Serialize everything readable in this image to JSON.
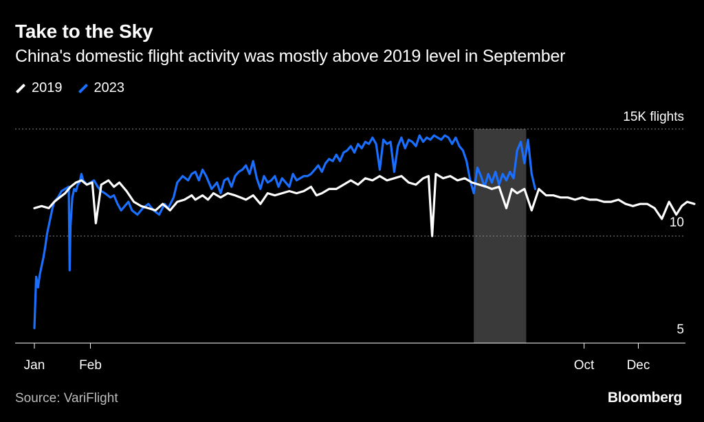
{
  "header": {
    "title": "Take to the Sky",
    "subtitle": "China's domestic flight activity was mostly above 2019 level in September"
  },
  "footer": {
    "source": "Source: VariFlight",
    "brand": "Bloomberg"
  },
  "colors": {
    "background": "#000000",
    "series_2019": "#ffffff",
    "series_2023": "#1a6fff",
    "highlight": "#3a3a3a",
    "grid": "#8a8a8a",
    "text": "#ffffff",
    "muted": "#bdbdbd"
  },
  "chart_data": {
    "type": "line",
    "title": "Take to the Sky",
    "subtitle": "China's domestic flight activity was mostly above 2019 level in September",
    "xlabel": "",
    "ylabel": "",
    "x_unit": "day of year",
    "xlim": [
      1,
      366
    ],
    "ylim": [
      5,
      15
    ],
    "y_ticks": [
      {
        "value": 15,
        "label": "15K flights"
      },
      {
        "value": 10,
        "label": "10"
      },
      {
        "value": 5,
        "label": "5"
      }
    ],
    "x_ticks": [
      {
        "value": 1,
        "label": "Jan"
      },
      {
        "value": 32,
        "label": "Feb"
      },
      {
        "value": 305,
        "label": "Oct"
      },
      {
        "value": 335,
        "label": "Dec"
      }
    ],
    "grid": "horizontal dotted",
    "legend": "top-left",
    "highlight_band": {
      "start": 244,
      "end": 273,
      "label": "September"
    },
    "series": [
      {
        "name": "2019",
        "x": [
          1,
          5,
          9,
          12,
          15,
          18,
          21,
          24,
          27,
          30,
          33,
          35,
          38,
          42,
          45,
          48,
          52,
          56,
          60,
          64,
          68,
          72,
          76,
          80,
          84,
          88,
          90,
          94,
          97,
          100,
          104,
          108,
          112,
          115,
          118,
          122,
          126,
          130,
          134,
          138,
          142,
          146,
          150,
          154,
          157,
          160,
          164,
          168,
          172,
          176,
          180,
          184,
          188,
          192,
          196,
          200,
          204,
          208,
          212,
          216,
          219,
          221,
          223,
          227,
          231,
          235,
          239,
          243,
          247,
          251,
          254,
          258,
          262,
          265,
          268,
          272,
          276,
          280,
          284,
          288,
          292,
          296,
          300,
          304,
          308,
          312,
          316,
          320,
          324,
          328,
          332,
          336,
          340,
          344,
          348,
          352,
          356,
          359,
          362,
          366
        ],
        "values": [
          11.3,
          11.4,
          11.3,
          11.6,
          11.8,
          12.0,
          12.3,
          12.5,
          12.6,
          12.4,
          12.5,
          10.6,
          12.4,
          12.6,
          12.3,
          12.5,
          12.1,
          11.6,
          11.4,
          11.3,
          11.2,
          11.5,
          11.2,
          11.6,
          11.7,
          11.9,
          11.7,
          11.9,
          11.7,
          12.0,
          11.8,
          12.0,
          11.9,
          11.8,
          11.7,
          11.9,
          11.5,
          12.0,
          11.9,
          12.0,
          12.1,
          12.0,
          12.1,
          12.3,
          11.9,
          12.0,
          12.2,
          12.2,
          12.4,
          12.6,
          12.4,
          12.7,
          12.6,
          12.8,
          12.6,
          12.7,
          12.8,
          12.5,
          12.4,
          12.7,
          12.8,
          10.0,
          12.9,
          12.7,
          12.8,
          12.6,
          12.7,
          12.5,
          12.4,
          12.3,
          12.2,
          12.3,
          11.3,
          12.2,
          12.0,
          12.2,
          11.2,
          12.2,
          11.9,
          11.9,
          11.8,
          11.8,
          11.7,
          11.8,
          11.7,
          11.7,
          11.6,
          11.6,
          11.7,
          11.5,
          11.4,
          11.5,
          11.5,
          11.3,
          10.8,
          11.6,
          11.0,
          11.4,
          11.6,
          11.5
        ]
      },
      {
        "name": "2023",
        "x": [
          1,
          2,
          3,
          4,
          5,
          6,
          7,
          8,
          9,
          10,
          11,
          12,
          14,
          16,
          18,
          20,
          20.5,
          21,
          22,
          23,
          24,
          25,
          26,
          27,
          28,
          30,
          32,
          34,
          36,
          38,
          40,
          43,
          45,
          47,
          49,
          51,
          53,
          55,
          58,
          61,
          64,
          67,
          70,
          73,
          75,
          78,
          80,
          83,
          86,
          88,
          90,
          92,
          94,
          96,
          99,
          102,
          104,
          106,
          108,
          110,
          112,
          114,
          116,
          118,
          120,
          122,
          124,
          126,
          128,
          130,
          132,
          134,
          136,
          138,
          140,
          142,
          144,
          146,
          148,
          150,
          152,
          154,
          156,
          158,
          160,
          162,
          164,
          166,
          168,
          170,
          172,
          174,
          176,
          178,
          180,
          182,
          184,
          186,
          188,
          190,
          192,
          194,
          196,
          198,
          200,
          202,
          204,
          206,
          208,
          210,
          212,
          214,
          216,
          218,
          220,
          222,
          224,
          226,
          228,
          230,
          232,
          234,
          236,
          238,
          240,
          242,
          244,
          246,
          248,
          250,
          252,
          254,
          256,
          258,
          260,
          262,
          264,
          266,
          268,
          270,
          272,
          274,
          276,
          278
        ],
        "values": [
          5.7,
          8.1,
          7.6,
          8.2,
          8.6,
          9.0,
          9.5,
          10.1,
          10.5,
          10.9,
          11.3,
          11.6,
          11.8,
          12.1,
          12.2,
          12.3,
          8.4,
          10.5,
          11.8,
          12.2,
          12.1,
          12.4,
          12.5,
          12.9,
          12.6,
          12.4,
          12.5,
          12.6,
          12.3,
          12.1,
          12.0,
          11.8,
          11.9,
          11.5,
          11.2,
          11.4,
          11.6,
          11.2,
          11.0,
          11.3,
          11.5,
          11.2,
          11.0,
          11.5,
          11.3,
          11.8,
          12.5,
          12.8,
          12.6,
          12.9,
          13.0,
          12.6,
          13.1,
          12.8,
          12.2,
          12.5,
          12.0,
          12.6,
          12.7,
          12.3,
          12.8,
          13.0,
          13.1,
          13.3,
          12.9,
          13.5,
          12.7,
          12.2,
          12.8,
          12.5,
          12.6,
          12.8,
          12.3,
          12.7,
          12.5,
          12.3,
          12.9,
          12.6,
          12.7,
          12.8,
          12.8,
          12.9,
          13.1,
          13.3,
          13.0,
          13.4,
          13.6,
          13.5,
          13.8,
          13.5,
          13.9,
          14.0,
          14.2,
          13.9,
          14.3,
          14.1,
          14.4,
          14.3,
          14.6,
          14.3,
          13.1,
          14.5,
          14.3,
          14.4,
          13.0,
          14.2,
          14.6,
          14.1,
          14.5,
          14.4,
          14.2,
          14.7,
          14.4,
          14.6,
          14.5,
          14.7,
          14.6,
          14.5,
          14.7,
          14.6,
          14.3,
          14.6,
          14.2,
          14.0,
          13.5,
          12.6,
          12.0,
          13.2,
          12.8,
          12.3,
          12.9,
          12.5,
          13.0,
          12.4,
          12.9,
          12.6,
          13.0,
          12.7,
          14.0,
          14.4,
          13.4,
          14.5,
          12.9,
          12.2
        ]
      }
    ]
  }
}
